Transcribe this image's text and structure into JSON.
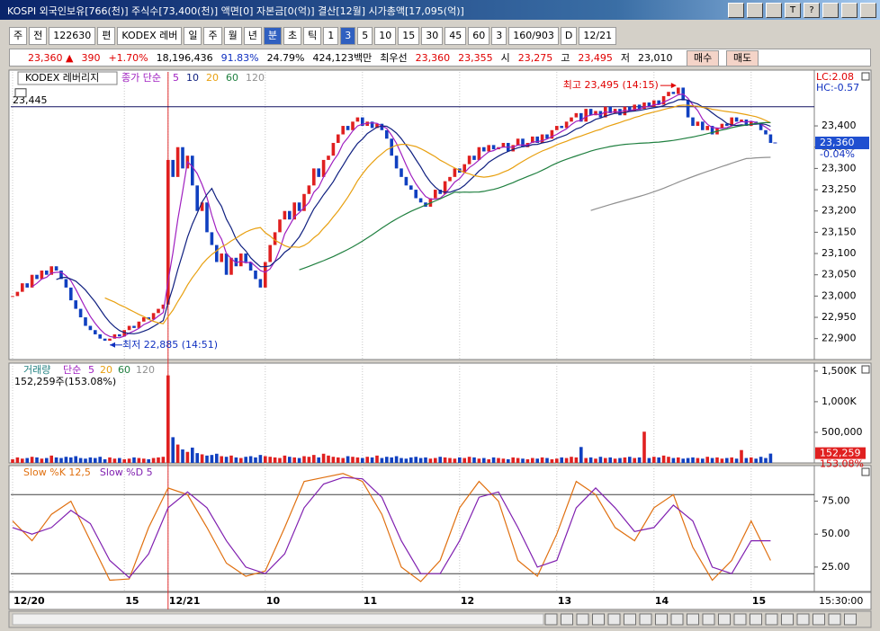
{
  "window": {
    "title": "KOSPI 외국인보유[766(천)] 주식수[73,400(천)] 액면[0] 자본금[0(억)] 결산[12월] 시가총액[17,095(억)]",
    "title_buttons": [
      "T",
      "?"
    ]
  },
  "toolbar": {
    "items": [
      "주",
      "전",
      "122630",
      "편",
      "KODEX 레버",
      "일",
      "주",
      "월",
      "년",
      "분",
      "초",
      "틱",
      "1",
      "3",
      "5",
      "10",
      "15",
      "30",
      "45",
      "60",
      "3",
      "160/903",
      "D",
      "12/21"
    ],
    "active_items": [
      9,
      13
    ]
  },
  "quote": {
    "items": [
      {
        "text": "23,360 ▲",
        "color": "#e00000"
      },
      {
        "text": "390",
        "color": "#e00000"
      },
      {
        "text": "+1.70%",
        "color": "#e00000"
      },
      {
        "text": "18,196,436",
        "color": "#000000"
      },
      {
        "text": "91.83%",
        "color": "#1030c0"
      },
      {
        "text": "24.79%",
        "color": "#000000"
      },
      {
        "text": "424,123백만",
        "color": "#000000"
      },
      {
        "text": "최우선",
        "color": "#000000"
      },
      {
        "text": "23,360",
        "color": "#e00000"
      },
      {
        "text": "23,355",
        "color": "#e00000"
      },
      {
        "text": "시",
        "color": "#000000"
      },
      {
        "text": "23,275",
        "color": "#e00000"
      },
      {
        "text": "고",
        "color": "#000000"
      },
      {
        "text": "23,495",
        "color": "#e00000"
      },
      {
        "text": "저",
        "color": "#000000"
      },
      {
        "text": "23,010",
        "color": "#000000"
      }
    ],
    "buttons": [
      "매수",
      "매도"
    ]
  },
  "time_axis": {
    "labels": [
      {
        "index": 0,
        "label": "12/20"
      },
      {
        "index": 23,
        "label": "15"
      },
      {
        "index": 32,
        "label": "12/21"
      },
      {
        "index": 52,
        "label": "10"
      },
      {
        "index": 72,
        "label": "11"
      },
      {
        "index": 92,
        "label": "12"
      },
      {
        "index": 112,
        "label": "13"
      },
      {
        "index": 132,
        "label": "14"
      },
      {
        "index": 152,
        "label": "15"
      }
    ],
    "end_label": "15:30:00",
    "session_break": 32
  },
  "chart_data": [
    {
      "type": "candlestick",
      "title": "KODEX 레버리지",
      "ma_label": "종가 단순",
      "ma_periods": [
        5,
        10,
        20,
        60,
        120
      ],
      "ma_colors": [
        "#a020c0",
        "#102080",
        "#e8a010",
        "#208040",
        "#909090"
      ],
      "up_color": "#e02020",
      "down_color": "#1040c0",
      "closes": [
        23000,
        23010,
        23030,
        23020,
        23050,
        23040,
        23060,
        23050,
        23070,
        23060,
        23040,
        23020,
        22990,
        22970,
        22950,
        22930,
        22920,
        22910,
        22900,
        22895,
        22900,
        22910,
        22905,
        22920,
        22930,
        22925,
        22940,
        22950,
        22945,
        22960,
        22970,
        22980,
        23320,
        23280,
        23350,
        23300,
        23330,
        23260,
        23200,
        23220,
        23150,
        23120,
        23080,
        23100,
        23050,
        23090,
        23070,
        23100,
        23080,
        23060,
        23040,
        23020,
        23080,
        23120,
        23150,
        23180,
        23200,
        23180,
        23220,
        23200,
        23240,
        23260,
        23300,
        23280,
        23320,
        23330,
        23360,
        23380,
        23400,
        23390,
        23410,
        23420,
        23400,
        23410,
        23395,
        23405,
        23390,
        23370,
        23330,
        23300,
        23280,
        23260,
        23250,
        23230,
        23220,
        23210,
        23230,
        23250,
        23240,
        23270,
        23280,
        23300,
        23290,
        23310,
        23330,
        23320,
        23350,
        23340,
        23355,
        23345,
        23350,
        23360,
        23340,
        23355,
        23370,
        23350,
        23360,
        23375,
        23360,
        23380,
        23370,
        23390,
        23400,
        23395,
        23410,
        23420,
        23430,
        23410,
        23440,
        23425,
        23435,
        23420,
        23445,
        23430,
        23440,
        23425,
        23445,
        23435,
        23450,
        23440,
        23455,
        23445,
        23460,
        23450,
        23470,
        23480,
        23475,
        23490,
        23460,
        23420,
        23400,
        23410,
        23390,
        23400,
        23380,
        23395,
        23405,
        23400,
        23420,
        23410,
        23415,
        23400,
        23410,
        23405,
        23390,
        23380,
        23360
      ],
      "ylim": [
        22855,
        23510
      ],
      "yticks": [
        {
          "value": 22900,
          "label": "22,900"
        },
        {
          "value": 22950,
          "label": "22,950"
        },
        {
          "value": 23000,
          "label": "23,000"
        },
        {
          "value": 23050,
          "label": "23,050"
        },
        {
          "value": 23100,
          "label": "23,100"
        },
        {
          "value": 23150,
          "label": "23,150"
        },
        {
          "value": 23200,
          "label": "23,200"
        },
        {
          "value": 23250,
          "label": "23,250"
        },
        {
          "value": 23300,
          "label": "23,300"
        },
        {
          "value": 23350,
          "label": "23,350"
        },
        {
          "value": 23400,
          "label": "23,400"
        }
      ],
      "reference_line": {
        "value": 23445,
        "label": "23,445"
      },
      "current": {
        "value": 23360,
        "label": "23,360",
        "change_label": "-0.04%"
      },
      "lc_label": "LC:2.08",
      "hc_label": "HC:-0.57",
      "annotations": [
        {
          "text": "최고 23,495 (14:15)",
          "index": 137,
          "value": 23495,
          "color": "#e00000"
        },
        {
          "text": "최저 22,885 (14:51)",
          "index": 20,
          "value": 22885,
          "color": "#1030c0"
        }
      ]
    },
    {
      "type": "bar",
      "title": "거래량",
      "ma_label": "단순",
      "ma_periods": [
        5,
        20,
        60,
        120
      ],
      "ma_colors": [
        "#a020c0",
        "#e8a010",
        "#208040",
        "#909090"
      ],
      "subtitle": "152,259주(153.08%)",
      "values": [
        60000,
        90000,
        70000,
        80000,
        100000,
        90000,
        70000,
        80000,
        120000,
        90000,
        80000,
        100000,
        90000,
        110000,
        80000,
        70000,
        90000,
        80000,
        100000,
        60000,
        90000,
        70000,
        80000,
        60000,
        70000,
        90000,
        80000,
        70000,
        60000,
        80000,
        90000,
        100000,
        1430000,
        420000,
        300000,
        220000,
        180000,
        250000,
        160000,
        140000,
        120000,
        130000,
        150000,
        110000,
        100000,
        120000,
        90000,
        80000,
        100000,
        110000,
        90000,
        130000,
        110000,
        100000,
        90000,
        80000,
        120000,
        100000,
        90000,
        80000,
        110000,
        100000,
        130000,
        90000,
        150000,
        120000,
        100000,
        90000,
        80000,
        110000,
        100000,
        90000,
        80000,
        100000,
        90000,
        120000,
        80000,
        100000,
        90000,
        110000,
        80000,
        70000,
        90000,
        100000,
        80000,
        90000,
        70000,
        80000,
        100000,
        90000,
        80000,
        70000,
        90000,
        80000,
        100000,
        90000,
        70000,
        80000,
        60000,
        90000,
        80000,
        70000,
        60000,
        90000,
        80000,
        70000,
        60000,
        80000,
        70000,
        90000,
        80000,
        60000,
        70000,
        90000,
        80000,
        100000,
        90000,
        260000,
        80000,
        90000,
        70000,
        100000,
        80000,
        90000,
        70000,
        80000,
        90000,
        100000,
        80000,
        90000,
        510000,
        80000,
        100000,
        90000,
        120000,
        100000,
        80000,
        90000,
        70000,
        80000,
        90000,
        80000,
        70000,
        100000,
        80000,
        90000,
        70000,
        80000,
        90000,
        70000,
        210000,
        80000,
        90000,
        70000,
        100000,
        80000,
        152259
      ],
      "ylim": [
        0,
        1630000
      ],
      "yticks": [
        {
          "value": 500000,
          "label": "500,000"
        },
        {
          "value": 1000000,
          "label": "1,000K"
        },
        {
          "value": 1500000,
          "label": "1,500K"
        }
      ],
      "current": {
        "value": 152259,
        "label": "152,259",
        "change_label": "153.08%"
      }
    },
    {
      "type": "line",
      "series": [
        {
          "name": "Slow %K 12,5",
          "color": "#e07010",
          "x": [
            0,
            4,
            8,
            12,
            16,
            20,
            24,
            28,
            32,
            36,
            40,
            44,
            48,
            52,
            56,
            60,
            64,
            68,
            72,
            76,
            80,
            84,
            88,
            92,
            96,
            100,
            104,
            108,
            112,
            116,
            120,
            124,
            128,
            132,
            136,
            140,
            144,
            148,
            152,
            156
          ],
          "values": [
            60,
            45,
            65,
            75,
            45,
            15,
            16,
            55,
            85,
            80,
            55,
            28,
            18,
            22,
            55,
            90,
            93,
            96,
            90,
            65,
            25,
            14,
            30,
            70,
            90,
            75,
            30,
            18,
            50,
            90,
            80,
            55,
            45,
            70,
            80,
            40,
            15,
            30,
            60,
            30
          ]
        },
        {
          "name": "Slow %D 5",
          "color": "#8020b0",
          "x": [
            0,
            4,
            8,
            12,
            16,
            20,
            24,
            28,
            32,
            36,
            40,
            44,
            48,
            52,
            56,
            60,
            64,
            68,
            72,
            76,
            80,
            84,
            88,
            92,
            96,
            100,
            104,
            108,
            112,
            116,
            120,
            124,
            128,
            132,
            136,
            140,
            144,
            148,
            152,
            156
          ],
          "values": [
            55,
            50,
            55,
            68,
            58,
            30,
            17,
            35,
            70,
            82,
            70,
            45,
            25,
            20,
            35,
            70,
            88,
            93,
            92,
            78,
            45,
            20,
            20,
            45,
            78,
            82,
            55,
            25,
            30,
            70,
            85,
            70,
            52,
            55,
            72,
            60,
            25,
            20,
            45,
            45
          ]
        }
      ],
      "ylim": [
        6.5,
        102
      ],
      "yticks": [
        {
          "value": 25,
          "label": "25.00"
        },
        {
          "value": 50,
          "label": "50.00"
        },
        {
          "value": 75,
          "label": "75.00"
        }
      ],
      "levels": [
        80,
        20
      ]
    }
  ]
}
